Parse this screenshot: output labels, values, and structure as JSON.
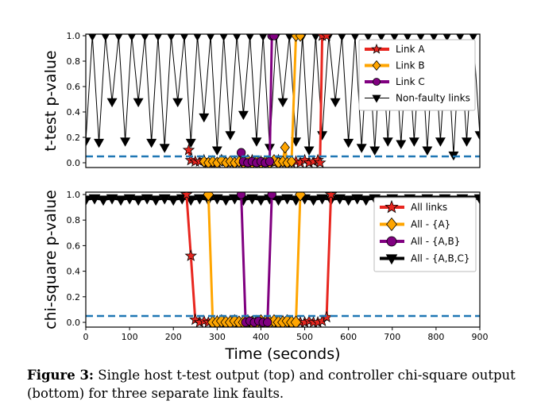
{
  "figure": {
    "caption_label": "Figure 3:",
    "caption_text": "Single host t-test output (top) and controller chi-square output (bottom) for three separate link faults."
  },
  "chart_data": [
    {
      "type": "line",
      "panel": "top",
      "xlabel": "",
      "ylabel": "t-test p-value",
      "xlim": [
        0,
        900
      ],
      "ylim": [
        0,
        1.0
      ],
      "yticks": [
        "0.0",
        "0.2",
        "0.4",
        "0.6",
        "0.8",
        "1.0"
      ],
      "threshold": 0.05,
      "legend_position": "top-right",
      "series": [
        {
          "name": "Link A",
          "color": "#e8261f",
          "marker": "star",
          "x": [
            235,
            240,
            250,
            260,
            270,
            280,
            290,
            300,
            310,
            320,
            330,
            340,
            350,
            360,
            370,
            380,
            390,
            400,
            410,
            420,
            430,
            440,
            450,
            460,
            470,
            480,
            490,
            500,
            510,
            520,
            530,
            535,
            540,
            550
          ],
          "y": [
            0.1,
            0.02,
            0.01,
            0.01,
            0.02,
            0.0,
            0.01,
            0.0,
            0.02,
            0.01,
            0.0,
            0.01,
            0.0,
            0.01,
            0.0,
            0.02,
            0.0,
            0.01,
            0.0,
            0.01,
            0.0,
            0.02,
            0.0,
            0.01,
            0.0,
            0.01,
            0.0,
            0.02,
            0.0,
            0.01,
            0.02,
            0.0,
            1.0,
            1.0
          ]
        },
        {
          "name": "Link B",
          "color": "#ffa500",
          "marker": "diamond",
          "x": [
            270,
            280,
            290,
            300,
            310,
            320,
            330,
            340,
            350,
            360,
            370,
            380,
            390,
            400,
            410,
            420,
            430,
            440,
            450,
            455,
            460,
            470,
            480,
            490
          ],
          "y": [
            0.01,
            0.0,
            0.01,
            0.0,
            0.02,
            0.0,
            0.01,
            0.0,
            0.01,
            0.0,
            0.02,
            0.0,
            0.01,
            0.0,
            0.01,
            0.0,
            0.02,
            0.0,
            0.01,
            0.12,
            0.0,
            0.01,
            1.0,
            1.0
          ]
        },
        {
          "name": "Link C",
          "color": "#800080",
          "marker": "circle",
          "x": [
            355,
            360,
            370,
            380,
            390,
            400,
            410,
            420,
            425,
            430
          ],
          "y": [
            0.08,
            0.01,
            0.0,
            0.01,
            0.0,
            0.01,
            0.0,
            0.01,
            1.0,
            1.0
          ]
        },
        {
          "name": "Non-faulty links",
          "color": "#000000",
          "marker": "triangle-down",
          "x": [
            0,
            15,
            30,
            45,
            60,
            75,
            90,
            105,
            120,
            135,
            150,
            165,
            180,
            195,
            210,
            225,
            240,
            255,
            270,
            285,
            300,
            315,
            330,
            345,
            360,
            375,
            390,
            405,
            420,
            435,
            450,
            465,
            480,
            495,
            510,
            525,
            540,
            555,
            570,
            585,
            600,
            615,
            630,
            645,
            660,
            675,
            690,
            705,
            720,
            735,
            750,
            765,
            780,
            795,
            810,
            825,
            840,
            855,
            870,
            885,
            900
          ],
          "y": [
            0.17,
            1.0,
            0.16,
            1.0,
            0.48,
            1.0,
            0.17,
            1.0,
            0.48,
            1.0,
            0.16,
            1.0,
            0.12,
            1.0,
            0.48,
            1.0,
            0.16,
            1.0,
            0.36,
            1.0,
            0.1,
            1.0,
            0.22,
            1.0,
            0.38,
            1.0,
            0.17,
            1.0,
            0.12,
            1.0,
            0.48,
            1.0,
            0.17,
            1.0,
            0.1,
            1.0,
            0.22,
            1.0,
            0.48,
            1.0,
            0.16,
            1.0,
            0.12,
            1.0,
            0.1,
            1.0,
            0.17,
            1.0,
            0.15,
            1.0,
            0.17,
            1.0,
            0.1,
            1.0,
            0.17,
            1.0,
            0.06,
            1.0,
            0.17,
            1.0,
            0.22
          ]
        }
      ]
    },
    {
      "type": "line",
      "panel": "bottom",
      "xlabel": "Time (seconds)",
      "ylabel": "chi-square p-value",
      "xlim": [
        0,
        900
      ],
      "ylim": [
        0,
        1.0
      ],
      "xticks": [
        "0",
        "100",
        "200",
        "300",
        "400",
        "500",
        "600",
        "700",
        "800",
        "900"
      ],
      "yticks": [
        "0.0",
        "0.2",
        "0.4",
        "0.6",
        "0.8",
        "1.0"
      ],
      "threshold": 0.05,
      "legend_position": "top-right",
      "series": [
        {
          "name": "All links",
          "color": "#e8261f",
          "marker": "star",
          "x": [
            230,
            240,
            250,
            260,
            270,
            280,
            290,
            300,
            310,
            320,
            330,
            340,
            350,
            360,
            370,
            380,
            390,
            400,
            410,
            420,
            430,
            440,
            450,
            460,
            470,
            480,
            490,
            500,
            510,
            520,
            530,
            540,
            550,
            560
          ],
          "y": [
            1.0,
            0.52,
            0.02,
            0.0,
            0.01,
            0.0,
            0.0,
            0.01,
            0.0,
            0.0,
            0.01,
            0.0,
            0.0,
            0.01,
            0.0,
            0.0,
            0.01,
            0.0,
            0.0,
            0.01,
            0.0,
            0.0,
            0.01,
            0.0,
            0.0,
            0.01,
            0.0,
            0.0,
            0.01,
            0.0,
            0.0,
            0.01,
            0.04,
            1.0
          ]
        },
        {
          "name": "All - {A}",
          "color": "#ffa500",
          "marker": "diamond",
          "x": [
            280,
            290,
            300,
            310,
            320,
            330,
            340,
            350,
            360,
            370,
            380,
            390,
            400,
            410,
            420,
            430,
            440,
            450,
            460,
            470,
            480,
            490
          ],
          "y": [
            1.0,
            0.0,
            0.0,
            0.01,
            0.0,
            0.0,
            0.01,
            0.0,
            0.0,
            0.01,
            0.0,
            0.0,
            0.01,
            0.0,
            0.0,
            0.01,
            0.0,
            0.0,
            0.01,
            0.0,
            0.0,
            1.0
          ]
        },
        {
          "name": "All - {A,B}",
          "color": "#800080",
          "marker": "circle",
          "x": [
            355,
            365,
            375,
            385,
            395,
            405,
            415,
            425
          ],
          "y": [
            1.0,
            0.0,
            0.01,
            0.0,
            0.01,
            0.0,
            0.0,
            1.0
          ]
        },
        {
          "name": "All - {A,B,C}",
          "color": "#000000",
          "marker": "triangle-down",
          "x": [
            0,
            20,
            40,
            60,
            80,
            100,
            120,
            140,
            160,
            180,
            200,
            220,
            240,
            260,
            280,
            300,
            320,
            340,
            360,
            380,
            400,
            420,
            440,
            460,
            480,
            500,
            520,
            540,
            560,
            580,
            600,
            620,
            640,
            660,
            680,
            700,
            720,
            740,
            760,
            780,
            800,
            820,
            840,
            860,
            880,
            900
          ],
          "y": [
            0.96,
            0.97,
            0.96,
            0.97,
            0.96,
            0.97,
            0.96,
            0.97,
            0.96,
            0.97,
            0.96,
            0.97,
            0.96,
            0.97,
            0.96,
            0.97,
            0.96,
            0.97,
            0.96,
            0.97,
            0.96,
            0.97,
            0.96,
            0.97,
            0.96,
            0.97,
            0.96,
            0.97,
            0.96,
            0.97,
            0.96,
            0.97,
            0.96,
            0.97,
            0.96,
            0.97,
            0.96,
            0.97,
            0.96,
            0.97,
            0.96,
            0.97,
            0.96,
            0.97,
            0.96,
            0.97
          ]
        }
      ]
    }
  ]
}
